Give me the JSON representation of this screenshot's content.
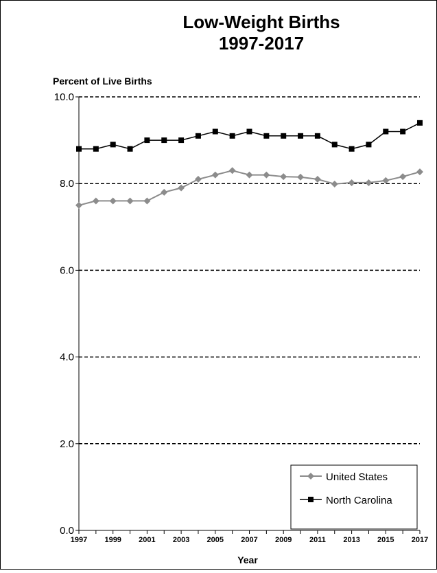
{
  "chart_data": {
    "type": "line",
    "title": "Low-Weight Births",
    "subtitle": "1997-2017",
    "ylabel": "Percent of Live Births",
    "xlabel": "Year",
    "ylim": [
      0,
      10
    ],
    "yticks": [
      "0.0",
      "2.0",
      "4.0",
      "6.0",
      "8.0",
      "10.0"
    ],
    "x": [
      1997,
      1998,
      1999,
      2000,
      2001,
      2002,
      2003,
      2004,
      2005,
      2006,
      2007,
      2008,
      2009,
      2010,
      2011,
      2012,
      2013,
      2014,
      2015,
      2016,
      2017
    ],
    "xtick_labels": [
      "1997",
      "1999",
      "2001",
      "2003",
      "2005",
      "2007",
      "2009",
      "2011",
      "2013",
      "2015",
      "2017"
    ],
    "grid": "horizontal dashed",
    "legend_position": "bottom-right",
    "series": [
      {
        "name": "United States",
        "color": "#8c8c8c",
        "marker": "diamond",
        "values": [
          7.5,
          7.6,
          7.6,
          7.6,
          7.6,
          7.8,
          7.9,
          8.1,
          8.2,
          8.3,
          8.2,
          8.2,
          8.16,
          8.15,
          8.1,
          7.99,
          8.02,
          8.02,
          8.07,
          8.16,
          8.27
        ]
      },
      {
        "name": "North Carolina",
        "color": "#000000",
        "marker": "square",
        "values": [
          8.8,
          8.8,
          8.9,
          8.8,
          9.0,
          9.0,
          9.0,
          9.1,
          9.2,
          9.1,
          9.2,
          9.1,
          9.1,
          9.1,
          9.1,
          8.9,
          8.8,
          8.9,
          9.2,
          9.2,
          9.4
        ]
      }
    ]
  }
}
